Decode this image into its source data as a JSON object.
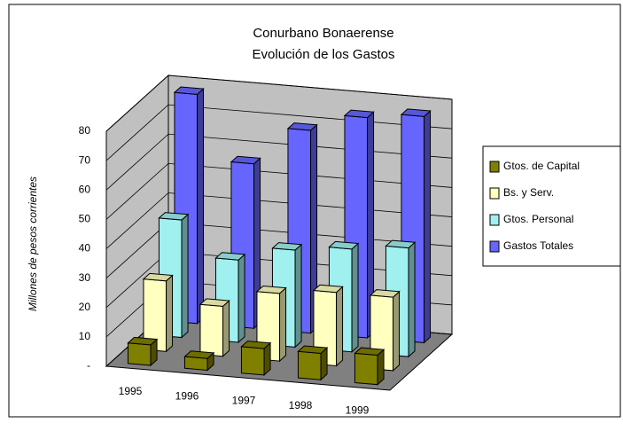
{
  "chart_data": {
    "type": "bar3d",
    "title": "Conurbano Bonaerense",
    "subtitle": "Evolución de los Gastos",
    "y_label": "Millones de pesos corrientes",
    "categories": [
      "1995",
      "1996",
      "1997",
      "1998",
      "1999"
    ],
    "series": [
      {
        "name": "Gtos. de Capital",
        "color": "#808000",
        "values": [
          7,
          4,
          9,
          9,
          10
        ]
      },
      {
        "name": "Bs. y Serv.",
        "color": "#ffffc0",
        "values": [
          24,
          17,
          23,
          25,
          25
        ]
      },
      {
        "name": "Gtos. Personal",
        "color": "#a0f0f0",
        "values": [
          40,
          28,
          33,
          35,
          37
        ]
      },
      {
        "name": "Gastos Totales",
        "color": "#6666ff",
        "values": [
          78,
          56,
          69,
          75,
          77
        ]
      }
    ],
    "ylim": [
      0,
      80
    ],
    "yticks": [
      {
        "value": 0,
        "label": "-"
      },
      10,
      20,
      30,
      40,
      50,
      60,
      70,
      80
    ],
    "grid": true,
    "legend": "right"
  }
}
